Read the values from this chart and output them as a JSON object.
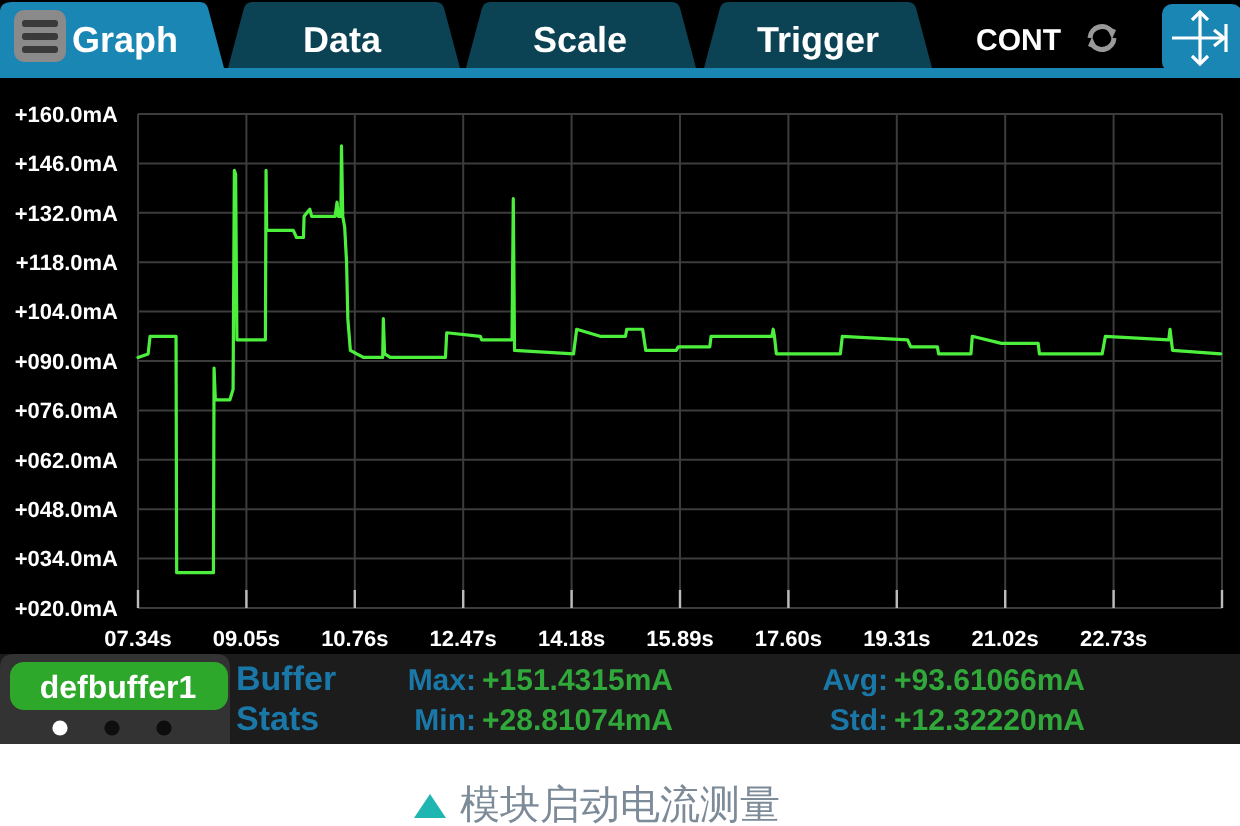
{
  "chart_data": {
    "type": "line",
    "x": [
      7.34,
      7.5,
      7.53,
      7.94,
      7.95,
      8.53,
      8.54,
      8.56,
      8.79,
      8.84,
      8.86,
      8.88,
      8.9,
      9.35,
      9.36,
      9.37,
      9.79,
      9.84,
      9.95,
      9.96,
      10.05,
      10.08,
      10.45,
      10.48,
      10.5,
      10.54,
      10.55,
      10.57,
      10.6,
      10.63,
      10.65,
      10.69,
      10.79,
      10.9,
      11.2,
      11.21,
      11.23,
      11.32,
      12.19,
      12.21,
      12.74,
      12.76,
      13.24,
      13.26,
      13.28,
      14.21,
      14.26,
      14.63,
      15.03,
      15.05,
      15.3,
      15.35,
      15.83,
      15.86,
      16.36,
      16.38,
      17.34,
      17.36,
      17.38,
      17.41,
      18.42,
      18.45,
      19.48,
      19.53,
      19.95,
      19.97,
      20.48,
      20.5,
      20.96,
      21.54,
      21.56,
      22.55,
      22.6,
      23.6,
      23.62,
      23.66,
      24.42
    ],
    "series": [
      {
        "color": "#4cf03c",
        "values": [
          91,
          92,
          97,
          97,
          30,
          30,
          88,
          79,
          79,
          82,
          144,
          143,
          96,
          96,
          144,
          127,
          127,
          125,
          125,
          131,
          133,
          131,
          131,
          135,
          131,
          131,
          151,
          131,
          128,
          118,
          102,
          93,
          92,
          91,
          91,
          102,
          92,
          91,
          91,
          98,
          97,
          96,
          96,
          136,
          93,
          92,
          99,
          97,
          97,
          99,
          99,
          93,
          93,
          94,
          94,
          97,
          97,
          99,
          97,
          92,
          92,
          97,
          96,
          94,
          94,
          92,
          92,
          97,
          95,
          95,
          92,
          92,
          97,
          96,
          99,
          93,
          92
        ]
      }
    ],
    "xlim": [
      7.34,
      24.44
    ],
    "xticks": [
      {
        "value": 7.34,
        "label": "07.34s"
      },
      {
        "value": 9.05,
        "label": "09.05s"
      },
      {
        "value": 10.76,
        "label": "10.76s"
      },
      {
        "value": 12.47,
        "label": "12.47s"
      },
      {
        "value": 14.18,
        "label": "14.18s"
      },
      {
        "value": 15.89,
        "label": "15.89s"
      },
      {
        "value": 17.6,
        "label": "17.60s"
      },
      {
        "value": 19.31,
        "label": "19.31s"
      },
      {
        "value": 21.02,
        "label": "21.02s"
      },
      {
        "value": 22.73,
        "label": "22.73s"
      },
      {
        "value": 24.44,
        "label": null
      }
    ],
    "ylim": [
      20,
      160
    ],
    "yticks": [
      {
        "value": 20,
        "label": "+020.0mA"
      },
      {
        "value": 34,
        "label": "+034.0mA"
      },
      {
        "value": 48,
        "label": "+048.0mA"
      },
      {
        "value": 62,
        "label": "+062.0mA"
      },
      {
        "value": 76,
        "label": "+076.0mA"
      },
      {
        "value": 90,
        "label": "+090.0mA"
      },
      {
        "value": 104,
        "label": "+104.0mA"
      },
      {
        "value": 118,
        "label": "+118.0mA"
      },
      {
        "value": 132,
        "label": "+132.0mA"
      },
      {
        "value": 146,
        "label": "+146.0mA"
      },
      {
        "value": 160,
        "label": "+160.0mA"
      }
    ],
    "grid": true,
    "annotations": [
      "Graph",
      "Data",
      "Scale",
      "Trigger",
      "CONT",
      "defbuffer1",
      "Buffer",
      "Stats",
      "Max:",
      "+151.4315mA",
      "Min:",
      "+28.81074mA",
      "Avg:",
      "+93.61066mA",
      "Std:",
      "+12.32220mA",
      "模块启动电流测量"
    ]
  }
}
